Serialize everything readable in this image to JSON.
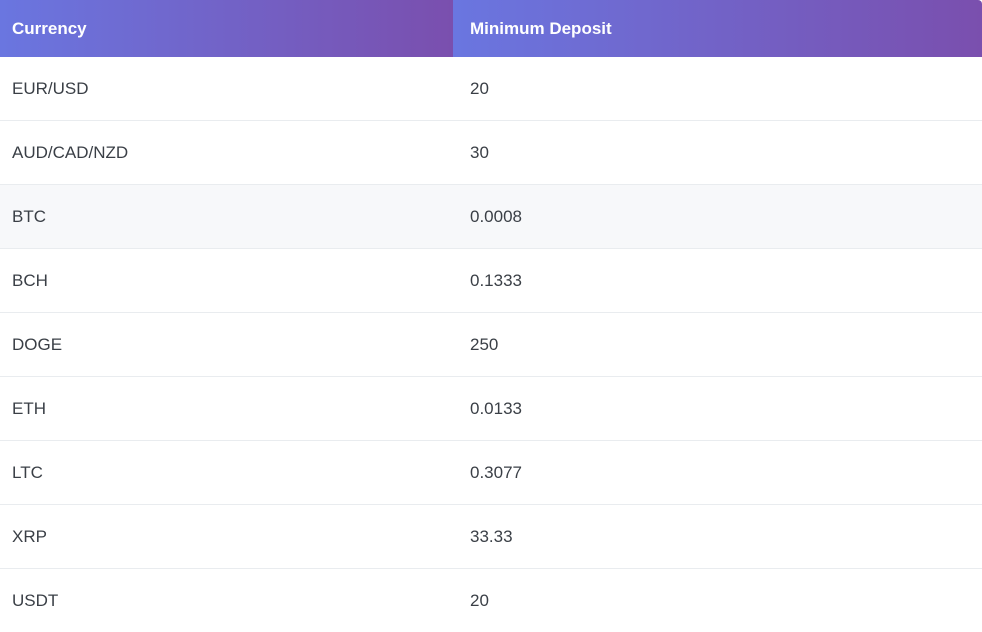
{
  "table": {
    "headers": {
      "currency": "Currency",
      "minimum_deposit": "Minimum Deposit"
    },
    "rows": [
      {
        "currency": "EUR/USD",
        "minimum_deposit": "20"
      },
      {
        "currency": "AUD/CAD/NZD",
        "minimum_deposit": "30"
      },
      {
        "currency": "BTC",
        "minimum_deposit": "0.0008"
      },
      {
        "currency": "BCH",
        "minimum_deposit": "0.1333"
      },
      {
        "currency": "DOGE",
        "minimum_deposit": "250"
      },
      {
        "currency": "ETH",
        "minimum_deposit": "0.0133"
      },
      {
        "currency": "LTC",
        "minimum_deposit": "0.3077"
      },
      {
        "currency": "XRP",
        "minimum_deposit": "33.33"
      },
      {
        "currency": "USDT",
        "minimum_deposit": "20"
      }
    ]
  },
  "colors": {
    "header_gradient_start": "#6a76e0",
    "header_gradient_end": "#7a4fae",
    "header_text": "#ffffff",
    "body_text": "#3a3f46",
    "shaded_row": "#f7f8fa",
    "row_divider": "#e9ecef"
  }
}
